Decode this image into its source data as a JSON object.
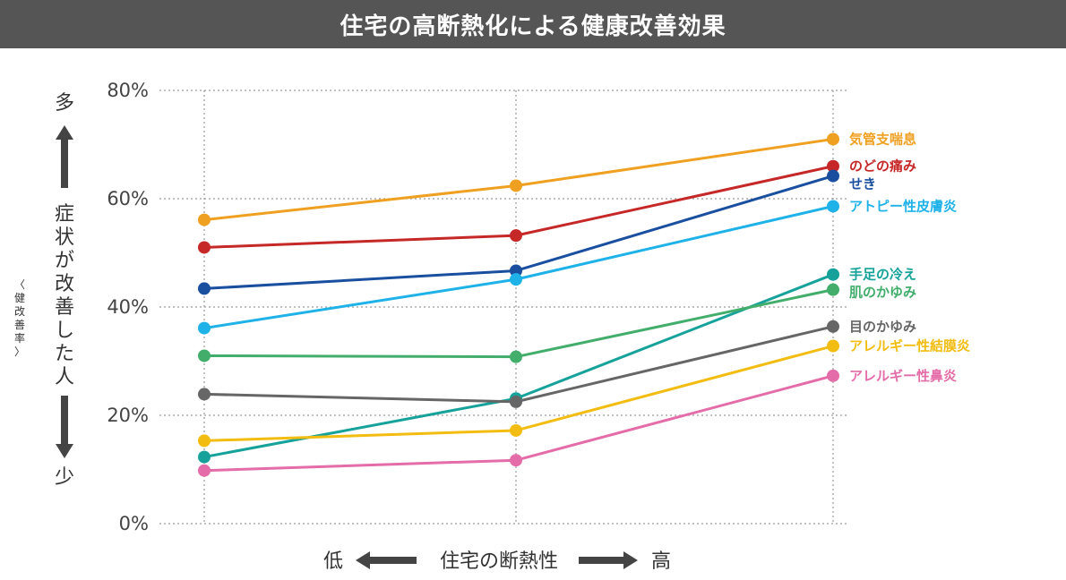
{
  "title": "住宅の高断熱化による健康改善効果",
  "y_axis": {
    "top_label": "多",
    "bottom_label": "少",
    "main_label": [
      "症",
      "状",
      "が",
      "改",
      "善",
      "し",
      "た",
      "人"
    ],
    "sub_label": [
      "〈",
      "健",
      "改",
      "善",
      "率",
      "〉"
    ]
  },
  "x_axis": {
    "low_label": "低",
    "center_label": "住宅の断熱性",
    "high_label": "高"
  },
  "chart_data": {
    "type": "line",
    "title": "住宅の高断熱化による健康改善効果",
    "xlabel": "住宅の断熱性",
    "ylabel": "症状が改善した人〈健改善率〉",
    "x": [
      1,
      2,
      3
    ],
    "ylim": [
      0,
      80
    ],
    "yticks": [
      0,
      20,
      40,
      60,
      80
    ],
    "ytick_labels": [
      "0%",
      "20%",
      "40%",
      "60%",
      "80%"
    ],
    "grid": true,
    "series": [
      {
        "name": "気管支喘息",
        "color": "#F0A020",
        "values": [
          56.1,
          62.4,
          71.0
        ]
      },
      {
        "name": "のどの痛み",
        "color": "#C62828",
        "values": [
          51.0,
          53.2,
          66.0
        ]
      },
      {
        "name": "せき",
        "color": "#1A4FA0",
        "values": [
          43.4,
          46.7,
          64.2
        ]
      },
      {
        "name": "アトピー性皮膚炎",
        "color": "#1FB2E8",
        "values": [
          36.1,
          45.1,
          58.6
        ]
      },
      {
        "name": "手足の冷え",
        "color": "#16A29A",
        "values": [
          12.3,
          23.1,
          46.0
        ]
      },
      {
        "name": "肌のかゆみ",
        "color": "#43AD6C",
        "values": [
          31.0,
          30.8,
          43.2
        ]
      },
      {
        "name": "目のかゆみ",
        "color": "#666666",
        "values": [
          23.9,
          22.5,
          36.4
        ]
      },
      {
        "name": "アレルギー性結膜炎",
        "color": "#F2BC11",
        "values": [
          15.3,
          17.2,
          32.8
        ]
      },
      {
        "name": "アレルギー性鼻炎",
        "color": "#E46CA8",
        "values": [
          9.8,
          11.7,
          27.3
        ]
      }
    ]
  }
}
